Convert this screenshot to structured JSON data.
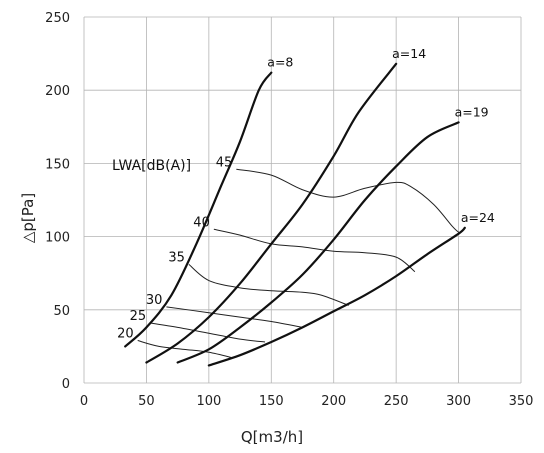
{
  "chart_data": {
    "type": "line",
    "xlabel": "Q[m3/h]",
    "ylabel": "△p[Pa]",
    "xlim": [
      0,
      350
    ],
    "ylim": [
      0,
      250
    ],
    "xticks": [
      0,
      50,
      100,
      150,
      200,
      250,
      300,
      350
    ],
    "yticks": [
      0,
      50,
      100,
      150,
      200,
      250
    ],
    "grid": true,
    "colors": {
      "grid": "#b4b4b4",
      "curve": "#111111",
      "iso_line": "#222222",
      "text": "#222222"
    },
    "fan_curves_title": "",
    "series": [
      {
        "name": "a=8",
        "role": "fan-curve",
        "points": [
          [
            33,
            25
          ],
          [
            50,
            38
          ],
          [
            70,
            60
          ],
          [
            90,
            95
          ],
          [
            110,
            135
          ],
          [
            125,
            165
          ],
          [
            140,
            200
          ],
          [
            150,
            212
          ]
        ]
      },
      {
        "name": "a=14",
        "role": "fan-curve",
        "points": [
          [
            50,
            14
          ],
          [
            75,
            27
          ],
          [
            100,
            45
          ],
          [
            125,
            68
          ],
          [
            150,
            95
          ],
          [
            175,
            122
          ],
          [
            200,
            155
          ],
          [
            220,
            185
          ],
          [
            250,
            218
          ]
        ]
      },
      {
        "name": "a=19",
        "role": "fan-curve",
        "points": [
          [
            75,
            14
          ],
          [
            100,
            23
          ],
          [
            125,
            38
          ],
          [
            150,
            55
          ],
          [
            175,
            74
          ],
          [
            200,
            98
          ],
          [
            225,
            125
          ],
          [
            250,
            148
          ],
          [
            275,
            168
          ],
          [
            300,
            178
          ]
        ]
      },
      {
        "name": "a=24",
        "role": "fan-curve",
        "points": [
          [
            100,
            12
          ],
          [
            125,
            19
          ],
          [
            150,
            28
          ],
          [
            175,
            38
          ],
          [
            200,
            49
          ],
          [
            225,
            60
          ],
          [
            250,
            73
          ],
          [
            275,
            88
          ],
          [
            300,
            102
          ],
          [
            305,
            106
          ]
        ]
      }
    ],
    "iso_title": "LWA[dB(A)]",
    "iso_lines": [
      {
        "level": "45",
        "points": [
          [
            122,
            146
          ],
          [
            150,
            142
          ],
          [
            175,
            132
          ],
          [
            200,
            127
          ],
          [
            225,
            133
          ],
          [
            250,
            137
          ],
          [
            262,
            134
          ],
          [
            280,
            122
          ],
          [
            295,
            107
          ],
          [
            300,
            103
          ]
        ]
      },
      {
        "level": "40",
        "points": [
          [
            104,
            105
          ],
          [
            125,
            101
          ],
          [
            150,
            95
          ],
          [
            175,
            93
          ],
          [
            200,
            90
          ],
          [
            225,
            89
          ],
          [
            250,
            86
          ],
          [
            265,
            76
          ]
        ]
      },
      {
        "level": "35",
        "points": [
          [
            84,
            81
          ],
          [
            100,
            70
          ],
          [
            125,
            65
          ],
          [
            150,
            63
          ],
          [
            175,
            62
          ],
          [
            190,
            60
          ],
          [
            212,
            53
          ]
        ]
      },
      {
        "level": "30",
        "points": [
          [
            66,
            52
          ],
          [
            100,
            48
          ],
          [
            125,
            45
          ],
          [
            150,
            42
          ],
          [
            175,
            38
          ]
        ]
      },
      {
        "level": "25",
        "points": [
          [
            53,
            41
          ],
          [
            75,
            38
          ],
          [
            100,
            34
          ],
          [
            125,
            30
          ],
          [
            145,
            28
          ]
        ]
      },
      {
        "level": "20",
        "points": [
          [
            43,
            29
          ],
          [
            60,
            25
          ],
          [
            80,
            23
          ],
          [
            100,
            21
          ],
          [
            120,
            17
          ]
        ]
      }
    ]
  }
}
